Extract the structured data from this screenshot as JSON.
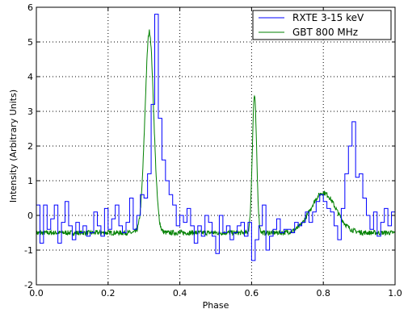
{
  "chart_data": {
    "type": "line",
    "xlabel": "Phase",
    "ylabel": "Intensity (Arbitrary Units)",
    "xlim": [
      0.0,
      1.0
    ],
    "ylim": [
      -2,
      6
    ],
    "xticks": [
      "0.0",
      "0.2",
      "0.4",
      "0.6",
      "0.8",
      "1.0"
    ],
    "yticks": [
      "-2",
      "-1",
      "0",
      "1",
      "2",
      "3",
      "4",
      "5",
      "6"
    ],
    "grid": true,
    "legend_position": "top-right",
    "series": [
      {
        "name": "RXTE 3-15 keV",
        "color": "#0000ff",
        "style": "step",
        "x": [
          0.0,
          0.01,
          0.02,
          0.03,
          0.04,
          0.05,
          0.06,
          0.07,
          0.08,
          0.09,
          0.1,
          0.11,
          0.12,
          0.13,
          0.14,
          0.15,
          0.16,
          0.17,
          0.18,
          0.19,
          0.2,
          0.21,
          0.22,
          0.23,
          0.24,
          0.25,
          0.26,
          0.27,
          0.28,
          0.29,
          0.3,
          0.31,
          0.32,
          0.33,
          0.34,
          0.35,
          0.36,
          0.37,
          0.38,
          0.39,
          0.4,
          0.41,
          0.42,
          0.43,
          0.44,
          0.45,
          0.46,
          0.47,
          0.48,
          0.49,
          0.5,
          0.51,
          0.52,
          0.53,
          0.54,
          0.55,
          0.56,
          0.57,
          0.58,
          0.59,
          0.6,
          0.61,
          0.62,
          0.63,
          0.64,
          0.65,
          0.66,
          0.67,
          0.68,
          0.69,
          0.7,
          0.71,
          0.72,
          0.73,
          0.74,
          0.75,
          0.76,
          0.77,
          0.78,
          0.79,
          0.8,
          0.81,
          0.82,
          0.83,
          0.84,
          0.85,
          0.86,
          0.87,
          0.88,
          0.89,
          0.9,
          0.91,
          0.92,
          0.93,
          0.94,
          0.95,
          0.96,
          0.97,
          0.98,
          0.99
        ],
        "y": [
          0.3,
          -0.8,
          0.3,
          -0.4,
          -0.1,
          0.3,
          -0.8,
          -0.2,
          0.4,
          -0.3,
          -0.7,
          -0.2,
          -0.5,
          -0.3,
          -0.6,
          -0.5,
          0.1,
          -0.3,
          -0.6,
          0.2,
          -0.4,
          -0.1,
          0.3,
          -0.3,
          -0.5,
          -0.2,
          0.5,
          -0.4,
          0.0,
          0.6,
          0.5,
          1.2,
          3.2,
          5.8,
          2.8,
          1.6,
          1.0,
          0.6,
          0.3,
          -0.3,
          0.0,
          -0.2,
          0.2,
          -0.3,
          -0.8,
          -0.3,
          -0.6,
          0.0,
          -0.2,
          -0.6,
          -1.1,
          0.0,
          -0.5,
          -0.3,
          -0.7,
          -0.5,
          -0.3,
          -0.2,
          -0.6,
          -0.2,
          -1.3,
          -0.7,
          -0.3,
          0.3,
          -1.0,
          -0.6,
          -0.4,
          -0.1,
          -0.5,
          -0.4,
          -0.4,
          -0.5,
          -0.2,
          -0.3,
          -0.2,
          0.1,
          -0.2,
          0.1,
          0.4,
          0.6,
          0.4,
          0.2,
          0.1,
          -0.3,
          -0.7,
          0.2,
          1.2,
          2.0,
          2.7,
          1.1,
          1.2,
          0.5,
          0.0,
          -0.4,
          0.1,
          -0.6,
          -0.2,
          0.2,
          -0.3,
          0.1
        ]
      },
      {
        "name": "GBT 800 MHz",
        "color": "#008000",
        "style": "line",
        "baseline": -0.5,
        "peaks": [
          {
            "center": 0.315,
            "amplitude": 5.8,
            "width": 0.012
          },
          {
            "center": 0.608,
            "amplitude": 3.95,
            "width": 0.006
          },
          {
            "center": 0.8,
            "amplitude": 1.15,
            "width": 0.035
          }
        ],
        "noise": 0.07
      }
    ]
  }
}
